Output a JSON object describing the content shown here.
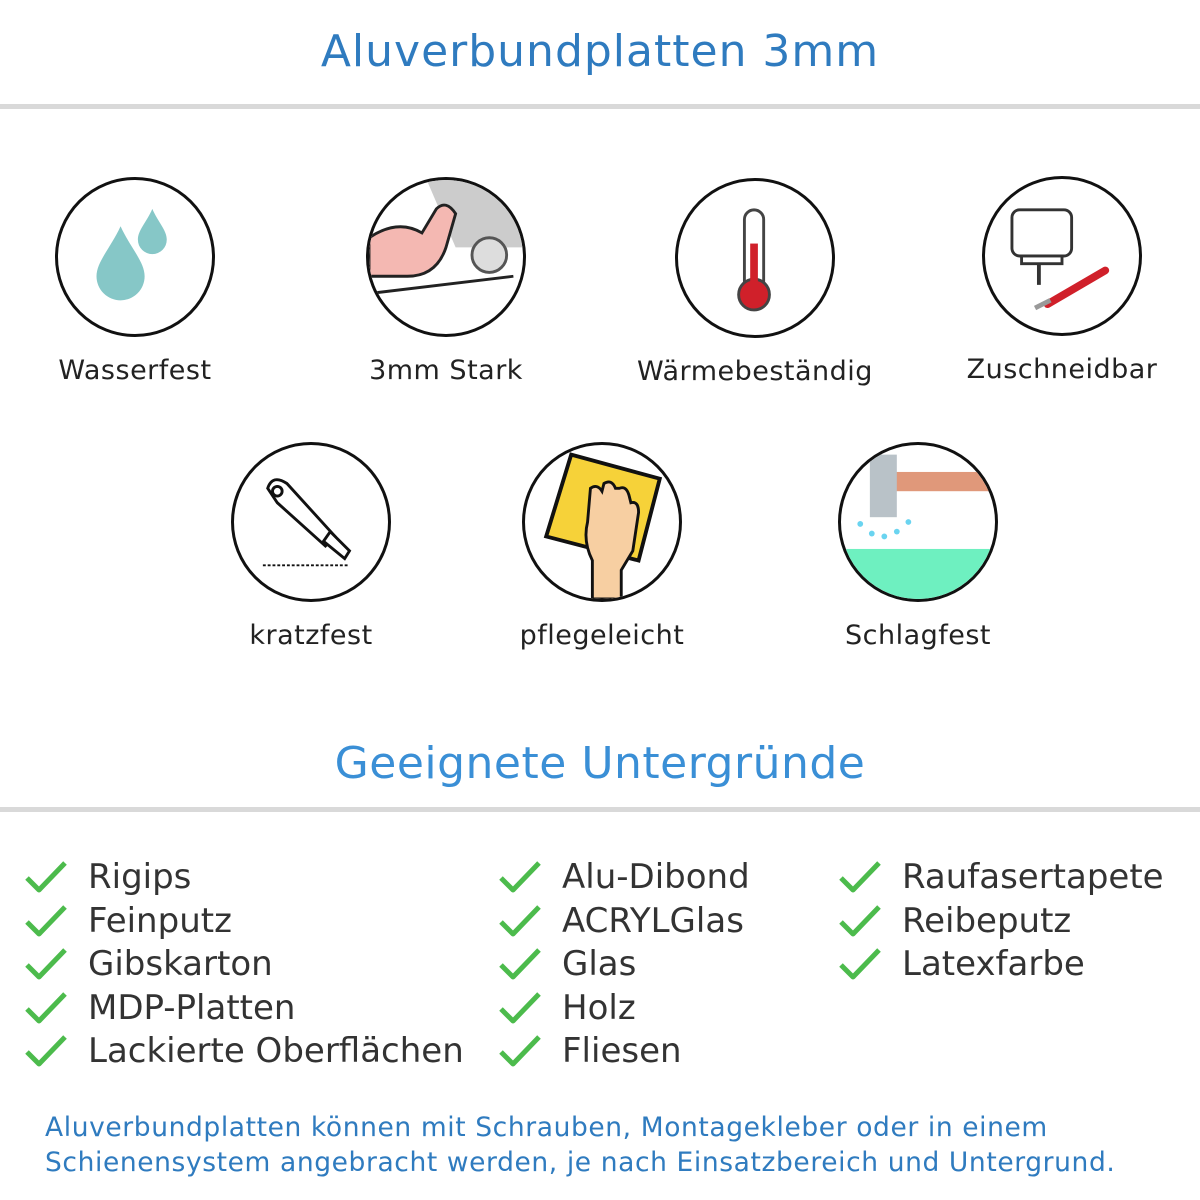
{
  "header": {
    "title": "Aluverbundplatten 3mm"
  },
  "features": [
    {
      "label": "Wasserfest",
      "icon": "water-drops-icon"
    },
    {
      "label": "3mm Stark",
      "icon": "strong-arm-icon"
    },
    {
      "label": "Wärmebeständig",
      "icon": "thermometer-icon"
    },
    {
      "label": "Zuschneidbar",
      "icon": "jigsaw-knife-icon"
    },
    {
      "label": "kratzfest",
      "icon": "cutter-knife-icon"
    },
    {
      "label": "pflegeleicht",
      "icon": "wiping-hand-icon"
    },
    {
      "label": "Schlagfest",
      "icon": "hammer-icon"
    }
  ],
  "surfaces": {
    "title": "Geeignete Untergründe",
    "check_color": "#4cbb4c",
    "columns": [
      [
        "Rigips",
        "Feinputz",
        "Gibskarton",
        "MDP-Platten",
        "Lackierte Oberflächen"
      ],
      [
        "Alu-Dibond",
        "ACRYLGlas",
        "Glas",
        "Holz",
        "Fliesen"
      ],
      [
        "Raufasertapete",
        "Reibeputz",
        "Latexfarbe"
      ]
    ]
  },
  "footer": {
    "line1": "Aluverbundplatten können mit Schrauben, Montagekleber oder in einem",
    "line2": "Schienensystem angebracht werden, je nach Einsatzbereich und Untergrund."
  },
  "colors": {
    "accent": "#2f7bbf",
    "subtitle": "#3a8fd6",
    "text": "#333333",
    "rule": "#d9d9d9"
  }
}
